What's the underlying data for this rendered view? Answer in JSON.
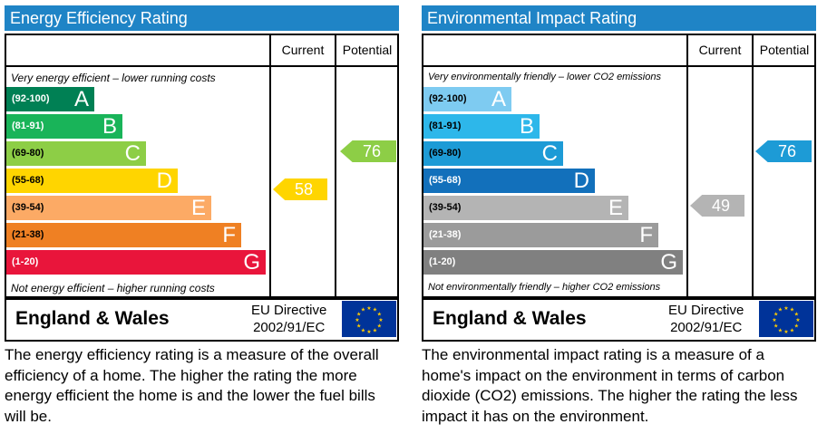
{
  "energy_efficiency": {
    "title": "Energy Efficiency Rating",
    "col_current": "Current",
    "col_potential": "Potential",
    "top_note": "Very energy efficient – lower running costs",
    "bottom_note": "Not energy efficient – higher running costs",
    "bands": [
      {
        "range": "(92-100)",
        "letter": "A",
        "color": "#008054"
      },
      {
        "range": "(81-91)",
        "letter": "B",
        "color": "#19b459"
      },
      {
        "range": "(69-80)",
        "letter": "C",
        "color": "#8dce46"
      },
      {
        "range": "(55-68)",
        "letter": "D",
        "color": "#ffd500"
      },
      {
        "range": "(39-54)",
        "letter": "E",
        "color": "#fcaa65"
      },
      {
        "range": "(21-38)",
        "letter": "F",
        "color": "#ef8023"
      },
      {
        "range": "(1-20)",
        "letter": "G",
        "color": "#e9153b"
      }
    ],
    "current": {
      "value": "58",
      "color": "#ffd500"
    },
    "potential": {
      "value": "76",
      "color": "#8dce46"
    },
    "region": "England & Wales",
    "directive_line1": "EU Directive",
    "directive_line2": "2002/91/EC",
    "description": "The energy efficiency rating is a measure of the overall efficiency of a home.  The higher the rating the more energy efficient the home is and the lower the fuel bills will be."
  },
  "environmental_impact": {
    "title": "Environmental Impact Rating",
    "col_current": "Current",
    "col_potential": "Potential",
    "top_note": "Very environmentally friendly – lower CO2 emissions",
    "bottom_note": "Not environmentally friendly – higher CO2 emissions",
    "bands": [
      {
        "range": "(92-100)",
        "letter": "A",
        "color": "#7ecbf1"
      },
      {
        "range": "(81-91)",
        "letter": "B",
        "color": "#2db7ea"
      },
      {
        "range": "(69-80)",
        "letter": "C",
        "color": "#1d9bd6"
      },
      {
        "range": "(55-68)",
        "letter": "D",
        "color": "#1270bb"
      },
      {
        "range": "(39-54)",
        "letter": "E",
        "color": "#b4b4b4"
      },
      {
        "range": "(21-38)",
        "letter": "F",
        "color": "#9b9b9b"
      },
      {
        "range": "(1-20)",
        "letter": "G",
        "color": "#808080"
      }
    ],
    "current": {
      "value": "49",
      "color": "#b4b4b4"
    },
    "potential": {
      "value": "76",
      "color": "#1d9bd6"
    },
    "region": "England & Wales",
    "directive_line1": "EU Directive",
    "directive_line2": "2002/91/EC",
    "description": "The environmental impact rating is a measure of a home's impact on the environment in terms of carbon dioxide (CO2) emissions.  The higher the rating the less impact it has on the environment."
  }
}
